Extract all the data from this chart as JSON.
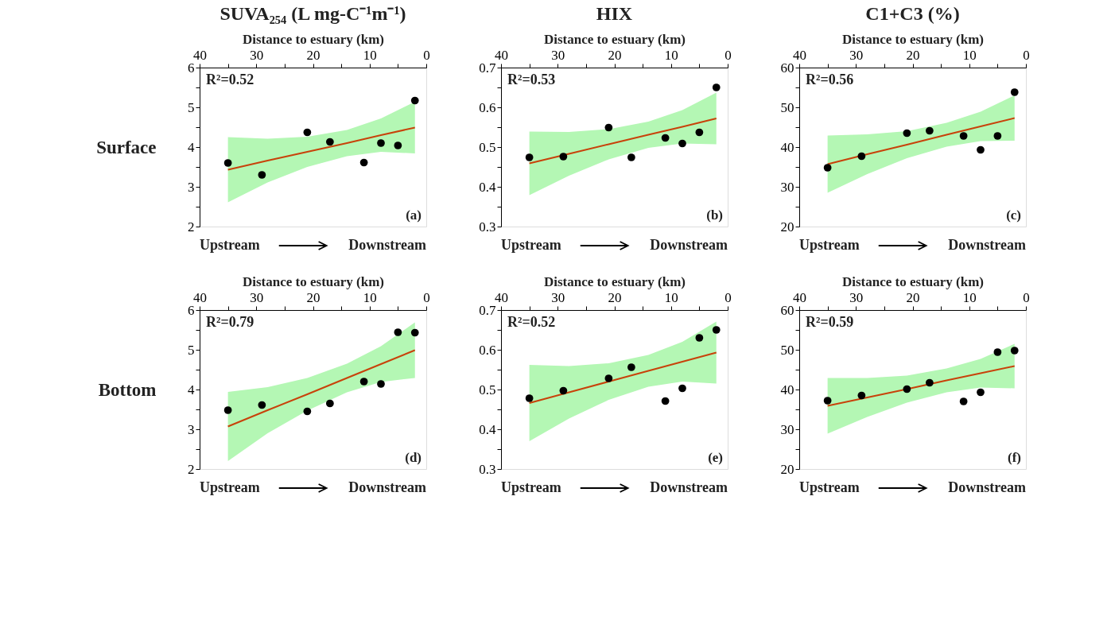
{
  "chart_data": [
    {
      "type": "scatter",
      "title": "SUVA₂₅₄ (L mg-C⁻¹m⁻¹)",
      "ylabel": "Surface",
      "xlabel": "Distance to estuary (km)",
      "xlim": [
        40,
        0
      ],
      "xticks": [
        40,
        {
          "value": 35,
          "label": null
        },
        30,
        {
          "value": 25,
          "label": null
        },
        20,
        {
          "value": 15,
          "label": null
        },
        10,
        {
          "value": 5,
          "label": null
        },
        0
      ],
      "ylim": [
        2,
        6
      ],
      "yticks": [
        2,
        {
          "value": 2.5,
          "label": null
        },
        3,
        {
          "value": 3.5,
          "label": null
        },
        4,
        {
          "value": 4.5,
          "label": null
        },
        5,
        {
          "value": 5.5,
          "label": null
        },
        6
      ],
      "series": [
        {
          "color": "#000000",
          "marker": "circle",
          "x": [
            35,
            29,
            21,
            17,
            11,
            8,
            5,
            2
          ],
          "values": [
            3.6,
            3.3,
            4.37,
            4.13,
            3.61,
            4.1,
            4.04,
            5.17
          ]
        },
        {
          "type": "line",
          "color": "#c8420a",
          "x": [
            35,
            28,
            21,
            14,
            8,
            2
          ],
          "values": [
            3.43,
            3.66,
            3.88,
            4.1,
            4.3,
            4.49
          ],
          "lower": [
            2.61,
            3.11,
            3.5,
            3.77,
            3.88,
            3.84
          ],
          "upper": [
            4.25,
            4.21,
            4.26,
            4.43,
            4.72,
            5.14
          ]
        }
      ],
      "annotations": [
        "R²=0.52",
        "(a)",
        "Upstream",
        "Downstream"
      ]
    },
    {
      "type": "scatter",
      "title": "HIX",
      "xlabel": "Distance to estuary (km)",
      "xlim": [
        40,
        0
      ],
      "xticks": [
        40,
        {
          "value": 35,
          "label": null
        },
        30,
        {
          "value": 25,
          "label": null
        },
        20,
        {
          "value": 15,
          "label": null
        },
        10,
        {
          "value": 5,
          "label": null
        },
        0
      ],
      "ylim": [
        0.3,
        0.7
      ],
      "yticks": [
        0.3,
        {
          "value": 0.35,
          "label": null
        },
        0.4,
        {
          "value": 0.45,
          "label": null
        },
        0.5,
        {
          "value": 0.55,
          "label": null
        },
        0.6,
        {
          "value": 0.65,
          "label": null
        },
        0.7
      ],
      "series": [
        {
          "color": "#000000",
          "marker": "circle",
          "x": [
            35,
            29,
            21,
            17,
            11,
            8,
            5,
            2
          ],
          "values": [
            0.474,
            0.476,
            0.549,
            0.474,
            0.523,
            0.509,
            0.537,
            0.65
          ]
        },
        {
          "type": "line",
          "color": "#c8420a",
          "x": [
            35,
            28,
            21,
            14,
            8,
            2
          ],
          "values": [
            0.459,
            0.483,
            0.507,
            0.531,
            0.551,
            0.572
          ],
          "lower": [
            0.379,
            0.428,
            0.469,
            0.498,
            0.509,
            0.507
          ],
          "upper": [
            0.539,
            0.538,
            0.545,
            0.564,
            0.593,
            0.637
          ]
        }
      ],
      "annotations": [
        "R²=0.53",
        "(b)",
        "Upstream",
        "Downstream"
      ]
    },
    {
      "type": "scatter",
      "title": "C1+C3 (%)",
      "xlabel": "Distance to estuary (km)",
      "xlim": [
        40,
        0
      ],
      "xticks": [
        40,
        {
          "value": 35,
          "label": null
        },
        30,
        {
          "value": 25,
          "label": null
        },
        20,
        {
          "value": 15,
          "label": null
        },
        10,
        {
          "value": 5,
          "label": null
        },
        0
      ],
      "ylim": [
        20,
        60
      ],
      "yticks": [
        20,
        {
          "value": 25,
          "label": null
        },
        30,
        {
          "value": 35,
          "label": null
        },
        40,
        {
          "value": 45,
          "label": null
        },
        50,
        {
          "value": 55,
          "label": null
        },
        60
      ],
      "series": [
        {
          "color": "#000000",
          "marker": "circle",
          "x": [
            35,
            29,
            21,
            17,
            11,
            8,
            5,
            2
          ],
          "values": [
            34.8,
            37.7,
            43.5,
            44.1,
            42.8,
            39.3,
            42.8,
            53.8
          ]
        },
        {
          "type": "line",
          "color": "#c8420a",
          "x": [
            35,
            28,
            21,
            14,
            8,
            2
          ],
          "values": [
            35.7,
            38.2,
            40.6,
            43.1,
            45.2,
            47.3
          ],
          "lower": [
            28.5,
            33.2,
            37.2,
            40.1,
            41.5,
            41.6
          ],
          "upper": [
            42.9,
            43.2,
            44.0,
            46.1,
            48.9,
            53.0
          ]
        }
      ],
      "annotations": [
        "R²=0.56",
        "(c)",
        "Upstream",
        "Downstream"
      ]
    },
    {
      "type": "scatter",
      "ylabel": "Bottom",
      "xlabel": "Distance to estuary (km)",
      "xlim": [
        40,
        0
      ],
      "xticks": [
        40,
        {
          "value": 35,
          "label": null
        },
        30,
        {
          "value": 25,
          "label": null
        },
        20,
        {
          "value": 15,
          "label": null
        },
        10,
        {
          "value": 5,
          "label": null
        },
        0
      ],
      "ylim": [
        2,
        6
      ],
      "yticks": [
        2,
        {
          "value": 2.5,
          "label": null
        },
        3,
        {
          "value": 3.5,
          "label": null
        },
        4,
        {
          "value": 4.5,
          "label": null
        },
        5,
        {
          "value": 5.5,
          "label": null
        },
        6
      ],
      "series": [
        {
          "color": "#000000",
          "marker": "circle",
          "x": [
            35,
            29,
            21,
            17,
            11,
            8,
            5,
            2
          ],
          "values": [
            3.48,
            3.61,
            3.45,
            3.65,
            4.2,
            4.14,
            5.44,
            5.43
          ]
        },
        {
          "type": "line",
          "color": "#c8420a",
          "x": [
            35,
            28,
            21,
            14,
            8,
            2
          ],
          "values": [
            3.07,
            3.48,
            3.88,
            4.29,
            4.64,
            4.99
          ],
          "lower": [
            2.2,
            2.9,
            3.47,
            3.93,
            4.19,
            4.29
          ],
          "upper": [
            3.94,
            4.06,
            4.29,
            4.65,
            5.09,
            5.69
          ]
        }
      ],
      "annotations": [
        "R²=0.79",
        "(d)",
        "Upstream",
        "Downstream"
      ]
    },
    {
      "type": "scatter",
      "xlabel": "Distance to estuary (km)",
      "xlim": [
        40,
        0
      ],
      "xticks": [
        40,
        {
          "value": 35,
          "label": null
        },
        30,
        {
          "value": 25,
          "label": null
        },
        20,
        {
          "value": 15,
          "label": null
        },
        10,
        {
          "value": 5,
          "label": null
        },
        0
      ],
      "ylim": [
        0.3,
        0.7
      ],
      "yticks": [
        0.3,
        {
          "value": 0.35,
          "label": null
        },
        0.4,
        {
          "value": 0.45,
          "label": null
        },
        0.5,
        {
          "value": 0.55,
          "label": null
        },
        0.6,
        {
          "value": 0.65,
          "label": null
        },
        0.7
      ],
      "series": [
        {
          "color": "#000000",
          "marker": "circle",
          "x": [
            35,
            29,
            21,
            17,
            11,
            8,
            5,
            2
          ],
          "values": [
            0.478,
            0.497,
            0.528,
            0.556,
            0.471,
            0.503,
            0.63,
            0.65
          ]
        },
        {
          "type": "line",
          "color": "#c8420a",
          "x": [
            35,
            28,
            21,
            14,
            8,
            2
          ],
          "values": [
            0.466,
            0.493,
            0.52,
            0.547,
            0.57,
            0.593
          ],
          "lower": [
            0.37,
            0.427,
            0.474,
            0.507,
            0.52,
            0.515
          ],
          "upper": [
            0.562,
            0.559,
            0.566,
            0.587,
            0.62,
            0.671
          ]
        }
      ],
      "annotations": [
        "R²=0.52",
        "(e)",
        "Upstream",
        "Downstream"
      ]
    },
    {
      "type": "scatter",
      "xlabel": "Distance to estuary (km)",
      "xlim": [
        40,
        0
      ],
      "xticks": [
        40,
        {
          "value": 35,
          "label": null
        },
        30,
        {
          "value": 25,
          "label": null
        },
        20,
        {
          "value": 15,
          "label": null
        },
        10,
        {
          "value": 5,
          "label": null
        },
        0
      ],
      "ylim": [
        20,
        60
      ],
      "yticks": [
        20,
        {
          "value": 25,
          "label": null
        },
        30,
        {
          "value": 35,
          "label": null
        },
        40,
        {
          "value": 45,
          "label": null
        },
        50,
        {
          "value": 55,
          "label": null
        },
        60
      ],
      "series": [
        {
          "color": "#000000",
          "marker": "circle",
          "x": [
            35,
            29,
            21,
            17,
            11,
            8,
            5,
            2
          ],
          "values": [
            37.2,
            38.5,
            40.1,
            41.7,
            37.0,
            39.3,
            49.4,
            49.8
          ]
        },
        {
          "type": "line",
          "color": "#c8420a",
          "x": [
            35,
            28,
            21,
            14,
            8,
            2
          ],
          "values": [
            35.9,
            38.0,
            40.1,
            42.3,
            44.1,
            45.9
          ],
          "lower": [
            28.9,
            33.1,
            36.7,
            39.3,
            40.5,
            40.3
          ],
          "upper": [
            42.9,
            42.9,
            43.5,
            45.3,
            47.7,
            51.5
          ]
        }
      ],
      "annotations": [
        "R²=0.59",
        "(f)",
        "Upstream",
        "Downstream"
      ]
    }
  ]
}
